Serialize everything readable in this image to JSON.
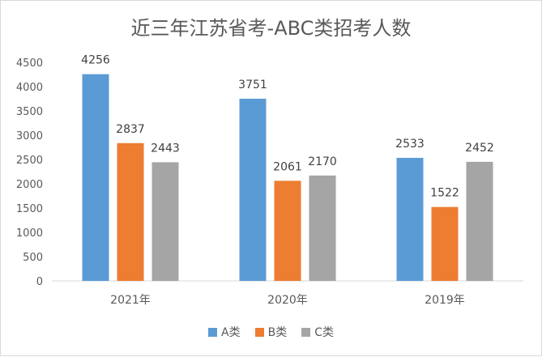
{
  "chart_data": {
    "type": "bar",
    "title": "近三年江苏省考-ABC类招考人数",
    "categories": [
      "2021年",
      "2020年",
      "2019年"
    ],
    "series": [
      {
        "name": "A类",
        "color": "#5b9bd5",
        "values": [
          4256,
          3751,
          2533
        ]
      },
      {
        "name": "B类",
        "color": "#ed7d31",
        "values": [
          2837,
          2061,
          1522
        ]
      },
      {
        "name": "C类",
        "color": "#a5a5a5",
        "values": [
          2443,
          2170,
          2452
        ]
      }
    ],
    "ylim": [
      0,
      4500
    ],
    "yticks": [
      0,
      500,
      1000,
      1500,
      2000,
      2500,
      3000,
      3500,
      4000,
      4500
    ],
    "xlabel": "",
    "ylabel": "",
    "grid": false,
    "legend_position": "bottom",
    "data_labels": true
  }
}
